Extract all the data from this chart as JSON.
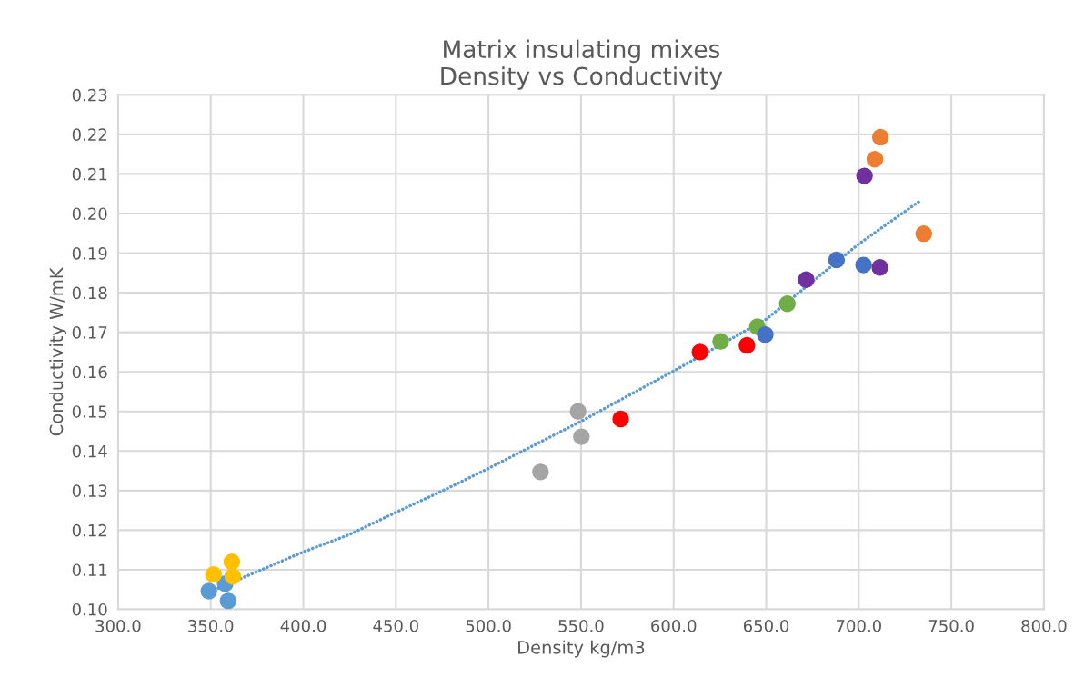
{
  "chart_data": {
    "type": "scatter",
    "title": "Matrix insulating mixes\nDensity vs Conductivity",
    "xlabel": "Density kg/m3",
    "ylabel": "Conductivity W/mK",
    "xlim": [
      300,
      800
    ],
    "xticks": [
      {
        "value": 300,
        "label": "300.0"
      },
      {
        "value": 350,
        "label": "350.0"
      },
      {
        "value": 400,
        "label": "400.0"
      },
      {
        "value": 450,
        "label": "450.0"
      },
      {
        "value": 500,
        "label": "500.0"
      },
      {
        "value": 550,
        "label": "550.0"
      },
      {
        "value": 600,
        "label": "600.0"
      },
      {
        "value": 650,
        "label": "650.0"
      },
      {
        "value": 700,
        "label": "700.0"
      },
      {
        "value": 750,
        "label": "750.0"
      },
      {
        "value": 800,
        "label": "800.0"
      }
    ],
    "ylim": [
      0.1,
      0.23
    ],
    "yticks": [
      {
        "value": 0.1,
        "label": "0.10"
      },
      {
        "value": 0.11,
        "label": "0.11"
      },
      {
        "value": 0.12,
        "label": "0.12"
      },
      {
        "value": 0.13,
        "label": "0.13"
      },
      {
        "value": 0.14,
        "label": "0.14"
      },
      {
        "value": 0.15,
        "label": "0.15"
      },
      {
        "value": 0.16,
        "label": "0.16"
      },
      {
        "value": 0.17,
        "label": "0.17"
      },
      {
        "value": 0.18,
        "label": "0.18"
      },
      {
        "value": 0.19,
        "label": "0.19"
      },
      {
        "value": 0.2,
        "label": "0.20"
      },
      {
        "value": 0.21,
        "label": "0.21"
      },
      {
        "value": 0.22,
        "label": "0.22"
      },
      {
        "value": 0.23,
        "label": "0.23"
      }
    ],
    "grid": true,
    "marker": "circle",
    "series": [
      {
        "type": "line",
        "color": "#5b9bd5",
        "line_style": "dotted",
        "marker": "none",
        "x": [
          352,
          375,
          400,
          425,
          450,
          475,
          500,
          550,
          600,
          650,
          700,
          734
        ],
        "values": [
          0.1049,
          0.1095,
          0.1145,
          0.1189,
          0.1245,
          0.1299,
          0.1356,
          0.1475,
          0.1602,
          0.1733,
          0.1923,
          0.2035
        ]
      },
      {
        "color": "#5b9bd5",
        "x": [
          349.0,
          357.8,
          359.4
        ],
        "values": [
          0.1046,
          0.1065,
          0.1021
        ]
      },
      {
        "color": "#ffc000",
        "x": [
          351.5,
          361.4,
          361.9
        ],
        "values": [
          0.1088,
          0.112,
          0.1083
        ]
      },
      {
        "color": "#a5a5a5",
        "x": [
          548.4,
          550.2,
          528.1
        ],
        "values": [
          0.15,
          0.1436,
          0.1347
        ]
      },
      {
        "color": "#ff0000",
        "x": [
          571.4,
          614.2,
          639.6
        ],
        "values": [
          0.1481,
          0.165,
          0.1667
        ]
      },
      {
        "color": "#70ad47",
        "x": [
          625.4,
          645.2,
          661.4
        ],
        "values": [
          0.1677,
          0.1714,
          0.1772
        ]
      },
      {
        "color": "#4472c4",
        "x": [
          649.5,
          688.0,
          702.6
        ],
        "values": [
          0.1694,
          0.1883,
          0.187
        ]
      },
      {
        "color": "#7030a0",
        "x": [
          671.6,
          703.1,
          711.4
        ],
        "values": [
          0.1833,
          0.2095,
          0.1864
        ]
      },
      {
        "color": "#ed7d31",
        "x": [
          711.7,
          708.7,
          735.1
        ],
        "values": [
          0.2193,
          0.2137,
          0.1949
        ]
      }
    ]
  }
}
